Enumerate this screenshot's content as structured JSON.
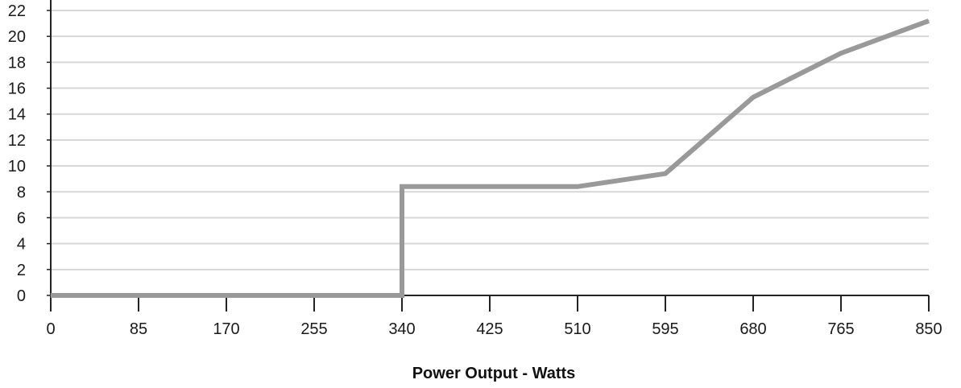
{
  "chart_data": {
    "type": "line",
    "title": "",
    "xlabel": "Power Output - Watts",
    "ylabel": "",
    "x_ticks": [
      "0",
      "85",
      "170",
      "255",
      "340",
      "425",
      "510",
      "595",
      "680",
      "765",
      "850"
    ],
    "y_ticks": [
      "0",
      "2",
      "4",
      "6",
      "8",
      "10",
      "12",
      "14",
      "16",
      "18",
      "20",
      "22"
    ],
    "xlim": [
      0,
      850
    ],
    "ylim": [
      0,
      22
    ],
    "grid": "horizontal",
    "legend": "none",
    "series": [
      {
        "color": "#999999",
        "x": [
          0,
          340,
          340,
          510,
          595,
          680,
          765,
          850
        ],
        "y": [
          0,
          0,
          8.4,
          8.4,
          9.4,
          15.3,
          18.7,
          21.2
        ]
      }
    ]
  }
}
